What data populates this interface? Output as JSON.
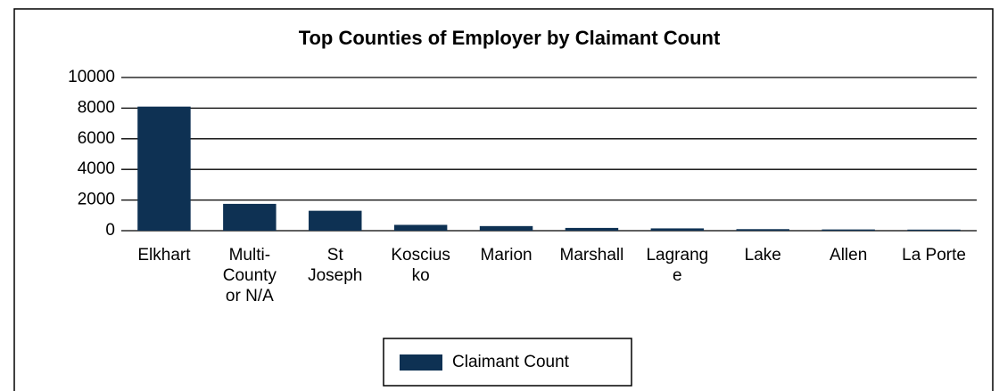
{
  "chart_data": {
    "type": "bar",
    "title": "Top Counties of Employer by Claimant Count",
    "categories": [
      "Elkhart",
      "Multi-County or N/A",
      "St Joseph",
      "Kosciusko",
      "Marion",
      "Marshall",
      "Lagrange",
      "Lake",
      "Allen",
      "La Porte"
    ],
    "series": [
      {
        "name": "Claimant Count",
        "color": "#0e3153",
        "values": [
          8100,
          1750,
          1300,
          380,
          300,
          180,
          150,
          100,
          80,
          70
        ]
      }
    ],
    "ylim": [
      0,
      10000
    ],
    "yticks": [
      0,
      2000,
      4000,
      6000,
      8000,
      10000
    ],
    "grid": true,
    "legend": "bottom"
  }
}
